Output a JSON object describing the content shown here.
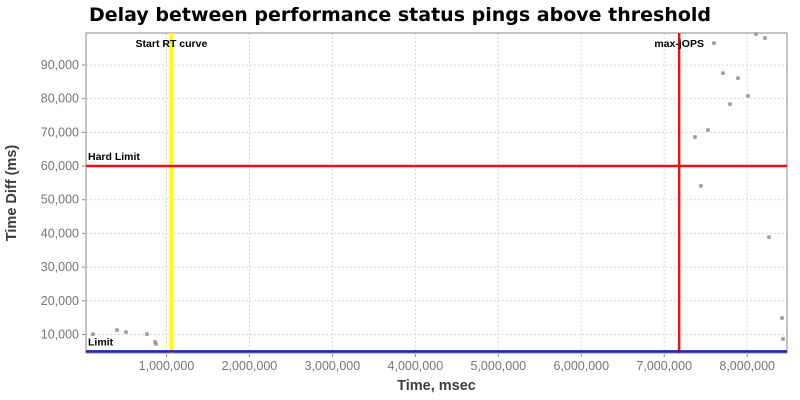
{
  "title": "Delay between performance status pings above threshold",
  "chart_data": {
    "type": "scatter",
    "title": "Delay between performance status pings above threshold",
    "xlabel": "Time, msec",
    "ylabel": "Time Diff (ms)",
    "xlim": [
      30000,
      8480000
    ],
    "ylim": [
      4500,
      99500
    ],
    "x_ticks": [
      1000000,
      2000000,
      3000000,
      4000000,
      5000000,
      6000000,
      7000000,
      8000000
    ],
    "x_tick_labels": [
      "1,000,000",
      "2,000,000",
      "3,000,000",
      "4,000,000",
      "5,000,000",
      "6,000,000",
      "7,000,000",
      "8,000,000"
    ],
    "y_ticks": [
      10000,
      20000,
      30000,
      40000,
      50000,
      60000,
      70000,
      80000,
      90000
    ],
    "y_tick_labels": [
      "10,000",
      "20,000",
      "30,000",
      "40,000",
      "50,000",
      "60,000",
      "70,000",
      "80,000",
      "90,000"
    ],
    "grid": true,
    "legend": "none",
    "point_color": "#9a8a8a",
    "grid_color": "#d8d8d8",
    "border_color": "#8a8a8a",
    "points": [
      [
        114000,
        10100
      ],
      [
        404000,
        11300
      ],
      [
        512000,
        10700
      ],
      [
        765000,
        10100
      ],
      [
        862000,
        7800
      ],
      [
        874000,
        7200
      ],
      [
        7600000,
        96500
      ],
      [
        8106000,
        99200
      ],
      [
        8215000,
        98000
      ],
      [
        7708000,
        87600
      ],
      [
        7889000,
        86100
      ],
      [
        8010000,
        80800
      ],
      [
        7793000,
        78400
      ],
      [
        7528000,
        70700
      ],
      [
        7371000,
        68600
      ],
      [
        7443000,
        54100
      ],
      [
        8263000,
        38900
      ],
      [
        8420000,
        14900
      ],
      [
        8432000,
        8700
      ]
    ],
    "marker_lines": [
      {
        "axis": "x",
        "value": 1060000,
        "label": "Start RT curve",
        "color": "#ffff00",
        "width": 4
      },
      {
        "axis": "x",
        "value": 7180000,
        "label": "max-jOPS",
        "color": "#ee1111",
        "width": 2.5
      },
      {
        "axis": "y",
        "value": 60000,
        "label": "Hard Limit",
        "color": "#ee1111",
        "width": 2.5
      },
      {
        "axis": "y",
        "value": 5000,
        "label": "Limit",
        "color": "#2222cc",
        "width": 2.5
      }
    ]
  }
}
